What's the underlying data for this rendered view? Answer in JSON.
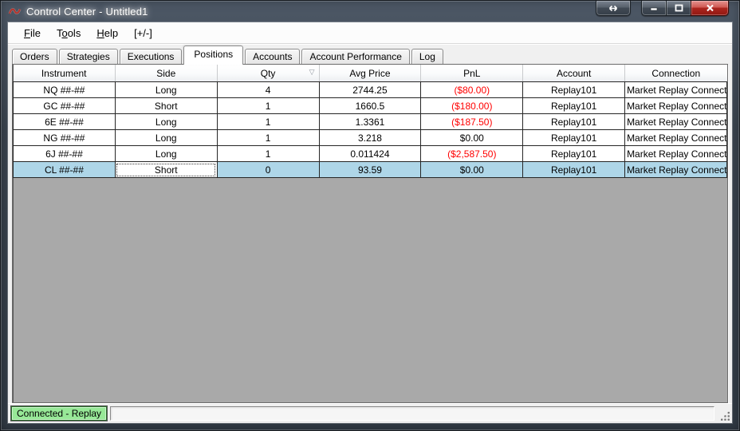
{
  "window": {
    "title": "Control Center - Untitled1"
  },
  "menu": {
    "items": [
      {
        "id": "file",
        "pre": "",
        "u": "F",
        "post": "ile"
      },
      {
        "id": "tools",
        "pre": "T",
        "u": "o",
        "post": "ols"
      },
      {
        "id": "help",
        "pre": "",
        "u": "H",
        "post": "elp"
      },
      {
        "id": "expand",
        "pre": "[+/-]",
        "u": "",
        "post": ""
      }
    ]
  },
  "tabs": {
    "active": "Positions",
    "items": [
      "Orders",
      "Strategies",
      "Executions",
      "Positions",
      "Accounts",
      "Account Performance",
      "Log"
    ]
  },
  "table": {
    "columns": [
      {
        "id": "instrument",
        "label": "Instrument"
      },
      {
        "id": "side",
        "label": "Side"
      },
      {
        "id": "qty",
        "label": "Qty",
        "sort_indicator": "▽"
      },
      {
        "id": "avg_price",
        "label": "Avg Price"
      },
      {
        "id": "pnl",
        "label": "PnL"
      },
      {
        "id": "account",
        "label": "Account"
      },
      {
        "id": "connection",
        "label": "Connection"
      }
    ],
    "rows": [
      {
        "instrument": "NQ ##-##",
        "side": "Long",
        "qty": "4",
        "avg_price": "2744.25",
        "pnl": "($80.00)",
        "pnl_negative": true,
        "account": "Replay101",
        "connection": "Market Replay Connecti"
      },
      {
        "instrument": "GC ##-##",
        "side": "Short",
        "qty": "1",
        "avg_price": "1660.5",
        "pnl": "($180.00)",
        "pnl_negative": true,
        "account": "Replay101",
        "connection": "Market Replay Connecti"
      },
      {
        "instrument": "6E ##-##",
        "side": "Long",
        "qty": "1",
        "avg_price": "1.3361",
        "pnl": "($187.50)",
        "pnl_negative": true,
        "account": "Replay101",
        "connection": "Market Replay Connecti"
      },
      {
        "instrument": "NG ##-##",
        "side": "Long",
        "qty": "1",
        "avg_price": "3.218",
        "pnl": "$0.00",
        "pnl_negative": false,
        "account": "Replay101",
        "connection": "Market Replay Connecti"
      },
      {
        "instrument": "6J ##-##",
        "side": "Long",
        "qty": "1",
        "avg_price": "0.011424",
        "pnl": "($2,587.50)",
        "pnl_negative": true,
        "account": "Replay101",
        "connection": "Market Replay Connecti"
      },
      {
        "instrument": "CL ##-##",
        "side": "Short",
        "qty": "0",
        "avg_price": "93.59",
        "pnl": "$0.00",
        "pnl_negative": false,
        "account": "Replay101",
        "connection": "Market Replay Connecti",
        "selected": true,
        "side_cell_focused": true
      }
    ]
  },
  "status": {
    "badge": "Connected - Replay"
  },
  "icons": {
    "window_logo": "ninjatrader-swirl",
    "link_window": "double-horizontal-arrow",
    "minimize": "dash",
    "maximize": "square-outline",
    "close": "x-cross",
    "sort": "hollow-down-triangle",
    "resize_grip": "dot-triangle"
  },
  "colors": {
    "titlebar": "#3a434e",
    "negative_pnl": "#ff0000",
    "selected_row": "#aed6e8",
    "badge_bg": "#97e897",
    "grid_empty": "#a9a9a9",
    "close_button": "#ad261f"
  }
}
